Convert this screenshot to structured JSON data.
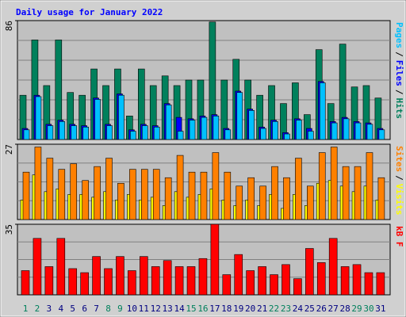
{
  "title": "Daily usage for January 2022",
  "legend_separator": "/",
  "chart_data": {
    "type": "bar",
    "categories": [
      "1",
      "2",
      "3",
      "4",
      "5",
      "6",
      "7",
      "8",
      "9",
      "10",
      "11",
      "12",
      "13",
      "14",
      "15",
      "16",
      "17",
      "18",
      "19",
      "20",
      "21",
      "22",
      "23",
      "24",
      "25",
      "26",
      "27",
      "28",
      "29",
      "30",
      "31"
    ],
    "category_colors": [
      "#00805c",
      "#00805c",
      "#000080",
      "#000080",
      "#000080",
      "#000080",
      "#000080",
      "#00805c",
      "#00805c",
      "#000080",
      "#000080",
      "#000080",
      "#000080",
      "#000080",
      "#00805c",
      "#00805c",
      "#000080",
      "#000080",
      "#000080",
      "#000080",
      "#000080",
      "#00805c",
      "#00805c",
      "#000080",
      "#000080",
      "#000080",
      "#000080",
      "#000080",
      "#00805c",
      "#00805c",
      "#000080"
    ],
    "panels": [
      {
        "ylim": [
          0,
          86
        ],
        "yticks": [
          86
        ],
        "series": [
          {
            "name": "Hits",
            "color": "#00805c",
            "values": [
              32,
              72,
              39,
              72,
              34,
              32,
              51,
              39,
              51,
              17,
              51,
              39,
              46,
              39,
              43,
              43,
              85,
              43,
              58,
              43,
              32,
              39,
              26,
              41,
              18,
              65,
              26,
              69,
              38,
              39,
              30
            ]
          },
          {
            "name": "Files",
            "color": "#0000ff",
            "values": [
              8,
              32,
              11,
              14,
              11,
              10,
              30,
              11,
              33,
              7,
              11,
              10,
              26,
              16,
              15,
              17,
              18,
              8,
              35,
              22,
              9,
              14,
              5,
              15,
              8,
              42,
              13,
              16,
              13,
              12,
              8
            ]
          },
          {
            "name": "Pages",
            "color": "#00c0ff",
            "values": [
              7,
              31,
              10,
              13,
              10,
              9,
              29,
              10,
              32,
              6,
              10,
              9,
              25,
              6,
              14,
              16,
              17,
              7,
              34,
              21,
              8,
              13,
              4,
              14,
              6,
              41,
              12,
              15,
              12,
              11,
              7
            ]
          }
        ]
      },
      {
        "ylim": [
          0,
          27
        ],
        "yticks": [
          27
        ],
        "series": [
          {
            "name": "Visits",
            "color": "#ffff00",
            "values": [
              7,
              16,
              10,
              11,
              9,
              9,
              8,
              10,
              7,
              9,
              7,
              8,
              5,
              10,
              8,
              9,
              11,
              7,
              5,
              7,
              5,
              9,
              4,
              9,
              5,
              13,
              14,
              12,
              10,
              12,
              7
            ]
          },
          {
            "name": "Sites",
            "color": "#ff8000",
            "values": [
              17,
              26,
              22,
              18,
              20,
              14,
              19,
              22,
              13,
              18,
              18,
              18,
              15,
              23,
              17,
              17,
              24,
              17,
              12,
              15,
              12,
              19,
              15,
              22,
              12,
              24,
              26,
              19,
              19,
              24,
              15
            ]
          }
        ]
      },
      {
        "ylim": [
          0,
          35
        ],
        "yticks": [
          35
        ],
        "series": [
          {
            "name": "kB F",
            "color": "#ff0000",
            "values": [
              12,
              28,
              14,
              28,
              13,
              11,
              19,
              13,
              19,
              12,
              19,
              14,
              17,
              14,
              14,
              18,
              35,
              10,
              20,
              12,
              14,
              10,
              15,
              8,
              23,
              16,
              28,
              14,
              15,
              11,
              11
            ]
          }
        ]
      }
    ]
  }
}
